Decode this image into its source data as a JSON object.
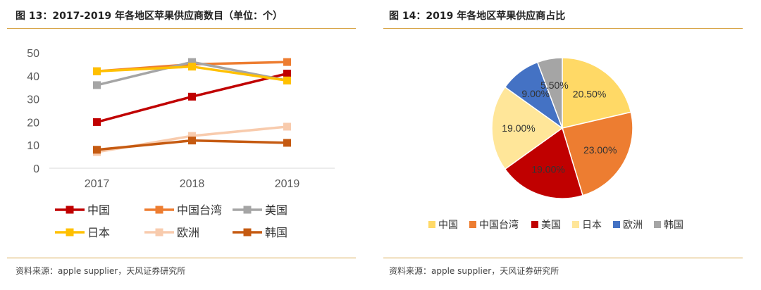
{
  "left": {
    "title": "图 13：2017-2019 年各地区苹果供应商数目（单位：个）",
    "source": "资料来源：apple supplier，天风证券研究所"
  },
  "right": {
    "title": "图 14：2019 年各地区苹果供应商占比",
    "source": "资料来源：apple supplier，天风证券研究所"
  },
  "chart_data": [
    {
      "type": "line",
      "categories": [
        "2017",
        "2018",
        "2019"
      ],
      "ylim": [
        0,
        50
      ],
      "yticks": [
        0,
        10,
        20,
        30,
        40,
        50
      ],
      "grid": false,
      "legend_position": "bottom",
      "series": [
        {
          "name": "中国",
          "values": [
            20,
            31,
            41
          ],
          "color": "#c00000"
        },
        {
          "name": "中国台湾",
          "values": [
            42,
            45,
            46
          ],
          "color": "#ed7d31"
        },
        {
          "name": "美国",
          "values": [
            36,
            46,
            38
          ],
          "color": "#a5a5a5"
        },
        {
          "name": "日本",
          "values": [
            42,
            44,
            38
          ],
          "color": "#ffc000"
        },
        {
          "name": "欧洲",
          "values": [
            7,
            14,
            18
          ],
          "color": "#f8cbad"
        },
        {
          "name": "韩国",
          "values": [
            8,
            12,
            11
          ],
          "color": "#c55a11"
        }
      ]
    },
    {
      "type": "pie",
      "legend_position": "bottom",
      "slices": [
        {
          "name": "中国",
          "value": 20.5,
          "label": "20.50%",
          "color": "#ffd966"
        },
        {
          "name": "中国台湾",
          "value": 23.0,
          "label": "23.00%",
          "color": "#ed7d31"
        },
        {
          "name": "美国",
          "value": 19.0,
          "label": "19.00%",
          "color": "#c00000"
        },
        {
          "name": "日本",
          "value": 19.0,
          "label": "19.00%",
          "color": "#ffe699"
        },
        {
          "name": "欧洲",
          "value": 9.0,
          "label": "9.00%",
          "color": "#4472c4"
        },
        {
          "name": "韩国",
          "value": 5.5,
          "label": "5.50%",
          "color": "#a5a5a5"
        }
      ]
    }
  ]
}
